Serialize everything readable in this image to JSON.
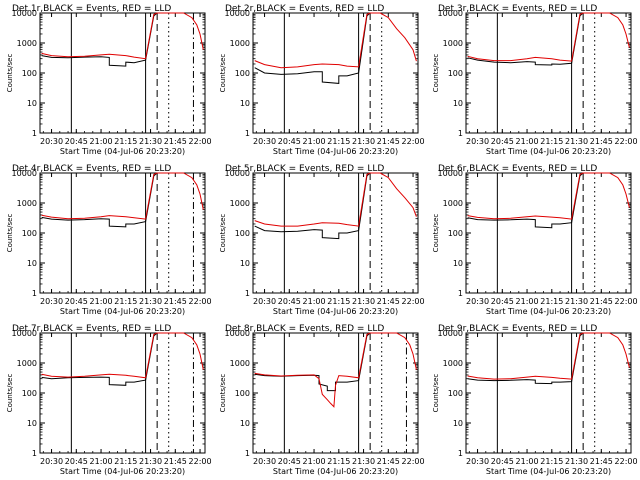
{
  "figure": {
    "xlabel": "Start Time (04-Jul-06 20:23:20)",
    "ylabel": "Counts/sec",
    "x_tick_labels": [
      "20:30",
      "20:45",
      "21:00",
      "21:15",
      "21:30",
      "21:45",
      "22:00"
    ],
    "y_tick_labels": [
      "1",
      "10",
      "100",
      "1000",
      "10000"
    ],
    "colors": {
      "events": "#000000",
      "lld": "#e00000",
      "axes": "#000000",
      "background": "#ffffff"
    }
  },
  "chart_data": [
    {
      "type": "line",
      "title": "Det 1r,BLACK = Events, RED = LLD",
      "xlabel": "Start Time (04-Jul-06 20:23:20)",
      "ylabel": "Counts/sec",
      "xlim": [
        "20:23",
        "22:03"
      ],
      "ylim": [
        1,
        10000
      ],
      "yscale": "log",
      "vlines": [
        {
          "x": "20:42",
          "style": "solid"
        },
        {
          "x": "21:27",
          "style": "solid"
        },
        {
          "x": "21:34",
          "style": "dashed"
        },
        {
          "x": "21:41",
          "style": "dotted"
        },
        {
          "x": "21:56",
          "style": "dashdot"
        }
      ],
      "series": [
        {
          "name": "Events",
          "x": [
            "20:24",
            "20:30",
            "20:40",
            "20:50",
            "21:00",
            "21:05",
            "21:05",
            "21:15",
            "21:15",
            "21:20",
            "21:27",
            "21:32",
            "21:34"
          ],
          "y": [
            380,
            330,
            320,
            340,
            350,
            330,
            180,
            170,
            230,
            220,
            270,
            8000,
            10000
          ]
        },
        {
          "name": "LLD",
          "x": [
            "20:24",
            "20:30",
            "20:40",
            "20:50",
            "21:00",
            "21:05",
            "21:15",
            "21:20",
            "21:27",
            "21:32",
            "21:34",
            "21:45",
            "21:50",
            "21:55",
            "21:58",
            "22:00",
            "22:02"
          ],
          "y": [
            450,
            380,
            350,
            360,
            400,
            420,
            380,
            340,
            300,
            9000,
            10000,
            10000,
            10000,
            7000,
            4000,
            2000,
            600
          ]
        }
      ]
    },
    {
      "type": "line",
      "title": "Det 2r,BLACK = Events, RED = LLD",
      "xlabel": "Start Time (04-Jul-06 20:23:20)",
      "ylabel": "Counts/sec",
      "xlim": [
        "20:23",
        "22:03"
      ],
      "ylim": [
        1,
        10000
      ],
      "yscale": "log",
      "vlines": [
        {
          "x": "20:42",
          "style": "solid"
        },
        {
          "x": "21:27",
          "style": "solid"
        },
        {
          "x": "21:34",
          "style": "dashed"
        },
        {
          "x": "21:41",
          "style": "dotted"
        }
      ],
      "series": [
        {
          "name": "Events",
          "x": [
            "20:24",
            "20:30",
            "20:40",
            "20:50",
            "21:00",
            "21:05",
            "21:05",
            "21:15",
            "21:15",
            "21:20",
            "21:27",
            "21:32",
            "21:34"
          ],
          "y": [
            150,
            100,
            90,
            95,
            110,
            110,
            50,
            45,
            80,
            80,
            100,
            8000,
            10000
          ]
        },
        {
          "name": "LLD",
          "x": [
            "20:24",
            "20:30",
            "20:40",
            "20:50",
            "21:00",
            "21:05",
            "21:15",
            "21:20",
            "21:27",
            "21:32",
            "21:34",
            "21:40",
            "21:45",
            "21:50",
            "21:55",
            "22:00",
            "22:02"
          ],
          "y": [
            260,
            190,
            150,
            160,
            190,
            200,
            190,
            170,
            160,
            9000,
            10000,
            10000,
            7000,
            3000,
            1500,
            600,
            250
          ]
        }
      ]
    },
    {
      "type": "line",
      "title": "Det 3r,BLACK = Events, RED = LLD",
      "xlabel": "Start Time (04-Jul-06 20:23:20)",
      "ylabel": "Counts/sec",
      "xlim": [
        "20:23",
        "22:03"
      ],
      "ylim": [
        1,
        10000
      ],
      "yscale": "log",
      "vlines": [
        {
          "x": "20:42",
          "style": "solid"
        },
        {
          "x": "21:27",
          "style": "solid"
        },
        {
          "x": "21:34",
          "style": "dashed"
        },
        {
          "x": "21:41",
          "style": "dotted"
        }
      ],
      "series": [
        {
          "name": "Events",
          "x": [
            "20:24",
            "20:30",
            "20:40",
            "20:50",
            "21:00",
            "21:05",
            "21:05",
            "21:15",
            "21:15",
            "21:20",
            "21:27",
            "21:32",
            "21:34"
          ],
          "y": [
            320,
            270,
            230,
            220,
            240,
            230,
            190,
            185,
            200,
            195,
            210,
            8000,
            10000
          ]
        },
        {
          "name": "LLD",
          "x": [
            "20:24",
            "20:30",
            "20:40",
            "20:50",
            "21:00",
            "21:05",
            "21:15",
            "21:20",
            "21:27",
            "21:32",
            "21:34",
            "21:45",
            "21:50",
            "21:55",
            "21:58",
            "22:00",
            "22:02"
          ],
          "y": [
            360,
            300,
            260,
            260,
            300,
            330,
            300,
            270,
            250,
            9000,
            10000,
            10000,
            10000,
            7000,
            4000,
            2000,
            700
          ]
        }
      ]
    },
    {
      "type": "line",
      "title": "Det 4r,BLACK = Events, RED = LLD",
      "xlabel": "Start Time (04-Jul-06 20:23:20)",
      "ylabel": "Counts/sec",
      "xlim": [
        "20:23",
        "22:03"
      ],
      "ylim": [
        1,
        10000
      ],
      "yscale": "log",
      "vlines": [
        {
          "x": "20:42",
          "style": "solid"
        },
        {
          "x": "21:27",
          "style": "solid"
        },
        {
          "x": "21:34",
          "style": "dashed"
        },
        {
          "x": "21:41",
          "style": "dotted"
        },
        {
          "x": "21:56",
          "style": "dashdot"
        }
      ],
      "series": [
        {
          "name": "Events",
          "x": [
            "20:24",
            "20:30",
            "20:40",
            "20:50",
            "21:00",
            "21:05",
            "21:05",
            "21:15",
            "21:15",
            "21:20",
            "21:27",
            "21:32",
            "21:34"
          ],
          "y": [
            330,
            290,
            270,
            280,
            300,
            290,
            170,
            160,
            200,
            200,
            240,
            8000,
            10000
          ]
        },
        {
          "name": "LLD",
          "x": [
            "20:24",
            "20:30",
            "20:40",
            "20:50",
            "21:00",
            "21:05",
            "21:15",
            "21:20",
            "21:27",
            "21:32",
            "21:34",
            "21:45",
            "21:50",
            "21:55",
            "21:58",
            "22:00",
            "22:02"
          ],
          "y": [
            390,
            340,
            300,
            310,
            350,
            380,
            350,
            320,
            290,
            9000,
            10000,
            10000,
            10000,
            7000,
            4000,
            2000,
            600
          ]
        }
      ]
    },
    {
      "type": "line",
      "title": "Det 5r,BLACK = Events, RED = LLD",
      "xlabel": "Start Time (04-Jul-06 20:23:20)",
      "ylabel": "Counts/sec",
      "xlim": [
        "20:23",
        "22:03"
      ],
      "ylim": [
        1,
        10000
      ],
      "yscale": "log",
      "vlines": [
        {
          "x": "20:42",
          "style": "solid"
        },
        {
          "x": "21:27",
          "style": "solid"
        },
        {
          "x": "21:34",
          "style": "dashed"
        },
        {
          "x": "21:41",
          "style": "dotted"
        }
      ],
      "series": [
        {
          "name": "Events",
          "x": [
            "20:24",
            "20:30",
            "20:40",
            "20:50",
            "21:00",
            "21:05",
            "21:05",
            "21:15",
            "21:15",
            "21:20",
            "21:27",
            "21:32",
            "21:34"
          ],
          "y": [
            170,
            120,
            110,
            115,
            130,
            125,
            70,
            65,
            100,
            100,
            120,
            8000,
            10000
          ]
        },
        {
          "name": "LLD",
          "x": [
            "20:24",
            "20:30",
            "20:40",
            "20:50",
            "21:00",
            "21:05",
            "21:15",
            "21:20",
            "21:27",
            "21:32",
            "21:34",
            "21:40",
            "21:45",
            "21:50",
            "21:55",
            "22:00",
            "22:02"
          ],
          "y": [
            260,
            200,
            170,
            170,
            200,
            220,
            210,
            190,
            170,
            9000,
            10000,
            10000,
            7000,
            3000,
            1500,
            700,
            350
          ]
        }
      ]
    },
    {
      "type": "line",
      "title": "Det 6r,BLACK = Events, RED = LLD",
      "xlabel": "Start Time (04-Jul-06 20:23:20)",
      "ylabel": "Counts/sec",
      "xlim": [
        "20:23",
        "22:03"
      ],
      "ylim": [
        1,
        10000
      ],
      "yscale": "log",
      "vlines": [
        {
          "x": "20:42",
          "style": "solid"
        },
        {
          "x": "21:27",
          "style": "solid"
        },
        {
          "x": "21:34",
          "style": "dashed"
        },
        {
          "x": "21:41",
          "style": "dotted"
        }
      ],
      "series": [
        {
          "name": "Events",
          "x": [
            "20:24",
            "20:30",
            "20:40",
            "20:50",
            "21:00",
            "21:05",
            "21:05",
            "21:15",
            "21:15",
            "21:20",
            "21:27",
            "21:32",
            "21:34"
          ],
          "y": [
            320,
            280,
            270,
            275,
            290,
            280,
            160,
            150,
            200,
            200,
            220,
            8000,
            10000
          ]
        },
        {
          "name": "LLD",
          "x": [
            "20:24",
            "20:30",
            "20:40",
            "20:50",
            "21:00",
            "21:05",
            "21:15",
            "21:20",
            "21:27",
            "21:32",
            "21:34",
            "21:45",
            "21:50",
            "21:55",
            "21:58",
            "22:00",
            "22:02"
          ],
          "y": [
            380,
            330,
            300,
            310,
            350,
            370,
            340,
            320,
            290,
            9000,
            10000,
            10000,
            10000,
            7000,
            4000,
            2000,
            700
          ]
        }
      ]
    },
    {
      "type": "line",
      "title": "Det 7r,BLACK = Events, RED = LLD",
      "xlabel": "Start Time (04-Jul-06 20:23:20)",
      "ylabel": "Counts/sec",
      "xlim": [
        "20:23",
        "22:03"
      ],
      "ylim": [
        1,
        10000
      ],
      "yscale": "log",
      "vlines": [
        {
          "x": "20:42",
          "style": "solid"
        },
        {
          "x": "21:27",
          "style": "solid"
        },
        {
          "x": "21:34",
          "style": "dashed"
        },
        {
          "x": "21:41",
          "style": "dotted"
        },
        {
          "x": "21:56",
          "style": "dashdot"
        }
      ],
      "series": [
        {
          "name": "Events",
          "x": [
            "20:24",
            "20:30",
            "20:40",
            "20:50",
            "21:00",
            "21:05",
            "21:05",
            "21:15",
            "21:15",
            "21:20",
            "21:27",
            "21:32",
            "21:34"
          ],
          "y": [
            330,
            300,
            320,
            330,
            340,
            330,
            190,
            180,
            230,
            230,
            270,
            8000,
            10000
          ]
        },
        {
          "name": "LLD",
          "x": [
            "20:24",
            "20:30",
            "20:40",
            "20:50",
            "21:00",
            "21:05",
            "21:15",
            "21:20",
            "21:27",
            "21:32",
            "21:34",
            "21:45",
            "21:50",
            "21:55",
            "21:58",
            "22:00",
            "22:02"
          ],
          "y": [
            420,
            360,
            340,
            360,
            400,
            420,
            390,
            360,
            320,
            9000,
            10000,
            10000,
            10000,
            7000,
            4000,
            2000,
            600
          ]
        }
      ]
    },
    {
      "type": "line",
      "title": "Det 8r,BLACK = Events, RED = LLD",
      "xlabel": "Start Time (04-Jul-06 20:23:20)",
      "ylabel": "Counts/sec",
      "xlim": [
        "20:23",
        "22:03"
      ],
      "ylim": [
        1,
        10000
      ],
      "yscale": "log",
      "vlines": [
        {
          "x": "20:42",
          "style": "solid"
        },
        {
          "x": "21:27",
          "style": "solid"
        },
        {
          "x": "21:34",
          "style": "dashed"
        },
        {
          "x": "21:41",
          "style": "dotted"
        },
        {
          "x": "21:56",
          "style": "dashdot"
        }
      ],
      "series": [
        {
          "name": "Events",
          "x": [
            "20:24",
            "20:30",
            "20:40",
            "20:50",
            "21:00",
            "21:03",
            "21:03",
            "21:08",
            "21:08",
            "21:13",
            "21:13",
            "21:20",
            "21:27",
            "21:32",
            "21:34"
          ],
          "y": [
            420,
            380,
            360,
            380,
            390,
            380,
            200,
            170,
            120,
            120,
            230,
            230,
            260,
            8000,
            10000
          ]
        },
        {
          "name": "LLD",
          "x": [
            "20:24",
            "20:30",
            "20:40",
            "20:50",
            "21:00",
            "21:03",
            "21:05",
            "21:08",
            "21:10",
            "21:12",
            "21:13",
            "21:15",
            "21:20",
            "21:27",
            "21:32",
            "21:34",
            "21:45",
            "21:50",
            "21:55",
            "21:58",
            "22:00",
            "22:02"
          ],
          "y": [
            450,
            400,
            370,
            390,
            400,
            300,
            90,
            60,
            45,
            35,
            180,
            380,
            360,
            320,
            9000,
            10000,
            10000,
            10000,
            7000,
            4000,
            2000,
            600
          ]
        }
      ]
    },
    {
      "type": "line",
      "title": "Det 9r,BLACK = Events, RED = LLD",
      "xlabel": "Start Time (04-Jul-06 20:23:20)",
      "ylabel": "Counts/sec",
      "xlim": [
        "20:23",
        "22:03"
      ],
      "ylim": [
        1,
        10000
      ],
      "yscale": "log",
      "vlines": [
        {
          "x": "20:42",
          "style": "solid"
        },
        {
          "x": "21:27",
          "style": "solid"
        },
        {
          "x": "21:34",
          "style": "dashed"
        },
        {
          "x": "21:41",
          "style": "dotted"
        }
      ],
      "series": [
        {
          "name": "Events",
          "x": [
            "20:24",
            "20:30",
            "20:40",
            "20:50",
            "21:00",
            "21:05",
            "21:05",
            "21:15",
            "21:15",
            "21:20",
            "21:27",
            "21:32",
            "21:34"
          ],
          "y": [
            300,
            270,
            260,
            265,
            280,
            270,
            210,
            205,
            230,
            230,
            240,
            8000,
            10000
          ]
        },
        {
          "name": "LLD",
          "x": [
            "20:24",
            "20:30",
            "20:40",
            "20:50",
            "21:00",
            "21:05",
            "21:15",
            "21:20",
            "21:27",
            "21:32",
            "21:34",
            "21:45",
            "21:50",
            "21:55",
            "21:58",
            "22:00",
            "22:02"
          ],
          "y": [
            370,
            320,
            290,
            300,
            340,
            360,
            330,
            310,
            290,
            9000,
            10000,
            10000,
            10000,
            7000,
            4000,
            2000,
            700
          ]
        }
      ]
    }
  ]
}
